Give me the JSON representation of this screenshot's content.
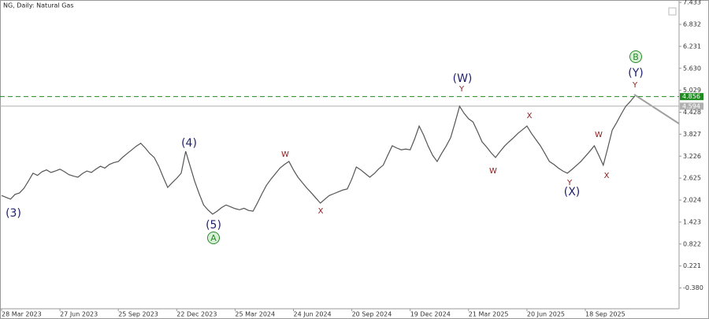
{
  "chart_data": {
    "type": "line",
    "title": "NG, Daily: Natural Gas",
    "categories": [
      "28 Mar 2023",
      null,
      null,
      null,
      null,
      null,
      null,
      null,
      null,
      null,
      null,
      null,
      null,
      "27 Jun 2023",
      null,
      null,
      null,
      null,
      null,
      null,
      null,
      null,
      null,
      null,
      null,
      null,
      "25 Sep 2023",
      null,
      null,
      null,
      null,
      null,
      null,
      null,
      null,
      null,
      null,
      null,
      null,
      "22 Dec 2023",
      null,
      null,
      null,
      null,
      null,
      null,
      null,
      null,
      null,
      null,
      null,
      null,
      "25 Mar 2024",
      null,
      null,
      null,
      null,
      null,
      null,
      null,
      null,
      null,
      null,
      null,
      null,
      "24 Jun 2024",
      null,
      null,
      null,
      null,
      null,
      null,
      null,
      null,
      null,
      null,
      null,
      null,
      "20 Sep 2024",
      null,
      null,
      null,
      null,
      null,
      null,
      null,
      null,
      null,
      null,
      null,
      null,
      "19 Dec 2024",
      null,
      null,
      null,
      null,
      null,
      null,
      null,
      null,
      null,
      null,
      null,
      null,
      "21 Mar 2025",
      null,
      null,
      null,
      null,
      null,
      null,
      null,
      null,
      null,
      null,
      null,
      null,
      "20 Jun 2025",
      null,
      null,
      null,
      null,
      null,
      null,
      null,
      null,
      null,
      null,
      null,
      null,
      "18 Sep 2025",
      null,
      null,
      null,
      null,
      null,
      null,
      null,
      null,
      null,
      null,
      null
    ],
    "values": [
      2.15,
      2.1,
      2.05,
      2.18,
      2.22,
      2.35,
      2.55,
      2.76,
      2.7,
      2.8,
      2.85,
      2.78,
      2.82,
      2.87,
      2.8,
      2.72,
      2.68,
      2.65,
      2.75,
      2.82,
      2.78,
      2.87,
      2.95,
      2.9,
      3.0,
      3.05,
      3.08,
      3.2,
      3.3,
      3.4,
      3.5,
      3.58,
      3.45,
      3.3,
      3.19,
      2.95,
      2.65,
      2.37,
      2.5,
      2.62,
      2.76,
      3.36,
      2.95,
      2.54,
      2.2,
      1.89,
      1.75,
      1.64,
      1.72,
      1.82,
      1.89,
      1.84,
      1.79,
      1.76,
      1.8,
      1.74,
      1.72,
      1.95,
      2.2,
      2.43,
      2.6,
      2.75,
      2.9,
      3.0,
      3.08,
      2.85,
      2.65,
      2.5,
      2.35,
      2.22,
      2.08,
      1.94,
      2.05,
      2.15,
      2.2,
      2.25,
      2.3,
      2.33,
      2.6,
      2.93,
      2.85,
      2.75,
      2.65,
      2.75,
      2.88,
      2.98,
      3.25,
      3.51,
      3.45,
      3.4,
      3.42,
      3.4,
      3.7,
      4.05,
      3.8,
      3.5,
      3.25,
      3.08,
      3.3,
      3.5,
      3.73,
      4.15,
      4.59,
      4.4,
      4.25,
      4.16,
      3.9,
      3.62,
      3.48,
      3.32,
      3.19,
      3.35,
      3.5,
      3.62,
      3.73,
      3.85,
      3.95,
      4.05,
      3.85,
      3.68,
      3.51,
      3.3,
      3.08,
      3.0,
      2.9,
      2.82,
      2.76,
      2.86,
      2.97,
      3.08,
      3.22,
      3.36,
      3.51,
      3.25,
      2.98,
      3.45,
      3.94,
      4.15,
      4.38,
      4.59,
      4.72,
      4.87
    ],
    "color": "#555555",
    "ylim": [
      -0.95,
      7.5
    ],
    "yticks": [
      7.433,
      6.832,
      6.231,
      {
        "value": 5.63,
        "label": "5.630"
      },
      5.029,
      4.428,
      3.827,
      3.226,
      2.625,
      2.024,
      1.423,
      0.822,
      0.221,
      {
        "value": -0.38,
        "label": "-0.380"
      }
    ],
    "price_lines": [
      {
        "value": 4.856,
        "color": "#1f8a1f",
        "dashed": true
      },
      {
        "value": 4.594,
        "color": "#b0b0b0",
        "dashed": false
      }
    ],
    "annotations": [
      {
        "text": "(3)",
        "color": "#1f1f6e"
      },
      {
        "text": "(4)",
        "color": "#1f1f6e"
      },
      {
        "text": "(5)",
        "color": "#1f1f6e"
      },
      {
        "text": "A",
        "color": "#2a8a2a",
        "circle": true
      },
      {
        "text": "W",
        "color": "#8b1a1a"
      },
      {
        "text": "X",
        "color": "#8b1a1a"
      },
      {
        "text": "(W)",
        "color": "#1f1f6e"
      },
      {
        "text": "Y",
        "color": "#8b1a1a"
      },
      {
        "text": "W",
        "color": "#8b1a1a"
      },
      {
        "text": "X",
        "color": "#8b1a1a"
      },
      {
        "text": "Y",
        "color": "#8b1a1a"
      },
      {
        "text": "(X)",
        "color": "#1f1f6e"
      },
      {
        "text": "W",
        "color": "#8b1a1a"
      },
      {
        "text": "X",
        "color": "#8b1a1a"
      },
      {
        "text": "Y",
        "color": "#8b1a1a"
      },
      {
        "text": "(Y)",
        "color": "#1f1f6e"
      },
      {
        "text": "B",
        "color": "#2a8a2a",
        "circle": true
      }
    ]
  }
}
